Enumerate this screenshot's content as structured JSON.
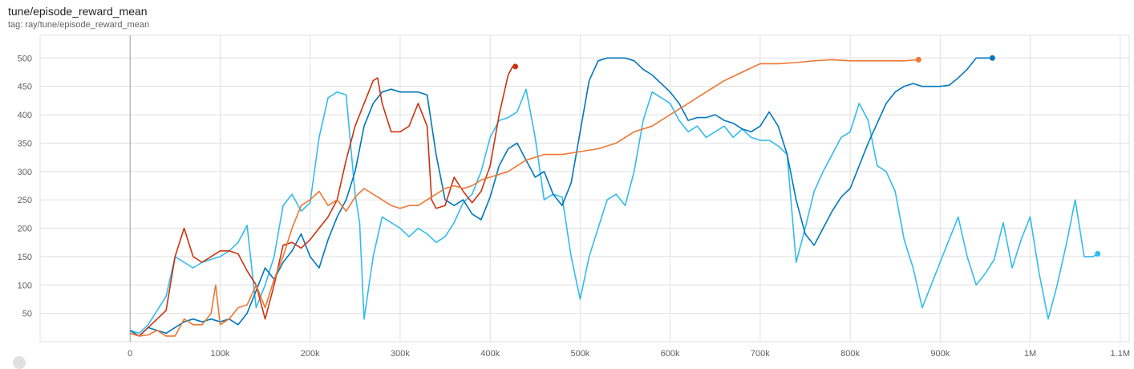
{
  "header": {
    "title": "tune/episode_reward_mean",
    "tag": "tag: ray/tune/episode_reward_mean"
  },
  "chart_data": {
    "type": "line",
    "title": "tune/episode_reward_mean",
    "xlabel": "",
    "ylabel": "",
    "xlim": [
      -100000,
      1110000
    ],
    "ylim": [
      0,
      540
    ],
    "grid": true,
    "x_ticks": [
      0,
      100000,
      200000,
      300000,
      400000,
      500000,
      600000,
      700000,
      800000,
      900000,
      1000000,
      1100000
    ],
    "x_tick_labels": [
      "0",
      "100k",
      "200k",
      "300k",
      "400k",
      "500k",
      "600k",
      "700k",
      "800k",
      "900k",
      "1M",
      "1.1M"
    ],
    "y_ticks": [
      50,
      100,
      150,
      200,
      250,
      300,
      350,
      400,
      450,
      500
    ],
    "y_tick_labels": [
      "50",
      "100",
      "150",
      "200",
      "250",
      "300",
      "350",
      "400",
      "450",
      "500"
    ],
    "series": [
      {
        "color": "#33bbee",
        "x": [
          0,
          10000,
          20000,
          40000,
          50000,
          60000,
          70000,
          80000,
          90000,
          100000,
          110000,
          120000,
          130000,
          140000,
          150000,
          160000,
          170000,
          180000,
          190000,
          200000,
          210000,
          220000,
          230000,
          240000,
          250000,
          255000,
          260000,
          270000,
          280000,
          290000,
          300000,
          310000,
          320000,
          330000,
          340000,
          350000,
          360000,
          370000,
          380000,
          390000,
          400000,
          410000,
          420000,
          430000,
          440000,
          450000,
          460000,
          470000,
          480000,
          490000,
          500000,
          510000,
          520000,
          530000,
          540000,
          550000,
          560000,
          570000,
          580000,
          590000,
          600000,
          610000,
          620000,
          630000,
          640000,
          650000,
          660000,
          670000,
          680000,
          690000,
          700000,
          710000,
          720000,
          730000,
          740000,
          750000,
          760000,
          770000,
          780000,
          790000,
          800000,
          810000,
          820000,
          830000,
          840000,
          850000,
          860000,
          870000,
          880000,
          890000,
          900000,
          910000,
          920000,
          930000,
          940000,
          950000,
          960000,
          970000,
          980000,
          990000,
          1000000,
          1010000,
          1020000,
          1030000,
          1040000,
          1050000,
          1060000,
          1070000,
          1075000
        ],
        "y": [
          20,
          15,
          30,
          80,
          150,
          140,
          130,
          140,
          145,
          150,
          160,
          175,
          205,
          60,
          100,
          150,
          240,
          260,
          230,
          245,
          360,
          430,
          440,
          435,
          260,
          210,
          40,
          150,
          220,
          210,
          200,
          185,
          200,
          190,
          175,
          185,
          210,
          245,
          260,
          300,
          360,
          390,
          395,
          405,
          445,
          360,
          250,
          260,
          255,
          150,
          75,
          150,
          200,
          250,
          260,
          240,
          300,
          390,
          440,
          430,
          420,
          390,
          370,
          380,
          360,
          370,
          380,
          360,
          375,
          360,
          355,
          355,
          345,
          330,
          140,
          200,
          265,
          300,
          330,
          360,
          370,
          420,
          390,
          310,
          300,
          265,
          180,
          130,
          60,
          100,
          140,
          180,
          220,
          150,
          100,
          120,
          145,
          210,
          130,
          180,
          220,
          120,
          40,
          100,
          170,
          250,
          150,
          150,
          155
        ]
      },
      {
        "color": "#0077bb",
        "x": [
          0,
          10000,
          20000,
          30000,
          40000,
          50000,
          60000,
          70000,
          80000,
          90000,
          100000,
          110000,
          120000,
          130000,
          140000,
          150000,
          160000,
          170000,
          180000,
          190000,
          200000,
          210000,
          220000,
          230000,
          240000,
          250000,
          260000,
          270000,
          280000,
          290000,
          300000,
          310000,
          320000,
          330000,
          340000,
          350000,
          360000,
          370000,
          380000,
          390000,
          400000,
          410000,
          420000,
          430000,
          440000,
          450000,
          460000,
          470000,
          480000,
          490000,
          500000,
          510000,
          520000,
          530000,
          540000,
          550000,
          560000,
          570000,
          580000,
          590000,
          600000,
          610000,
          620000,
          630000,
          640000,
          650000,
          660000,
          670000,
          680000,
          690000,
          700000,
          710000,
          720000,
          730000,
          740000,
          750000,
          760000,
          770000,
          780000,
          790000,
          800000,
          810000,
          820000,
          830000,
          840000,
          850000,
          860000,
          870000,
          880000,
          890000,
          900000,
          910000,
          920000,
          930000,
          940000,
          950000,
          958000
        ],
        "y": [
          20,
          10,
          25,
          20,
          15,
          25,
          35,
          40,
          35,
          40,
          35,
          40,
          30,
          50,
          90,
          130,
          110,
          140,
          160,
          190,
          150,
          130,
          180,
          220,
          250,
          300,
          380,
          420,
          440,
          445,
          440,
          440,
          440,
          435,
          330,
          250,
          240,
          250,
          225,
          215,
          255,
          310,
          340,
          350,
          320,
          290,
          300,
          260,
          240,
          280,
          370,
          460,
          495,
          500,
          500,
          500,
          495,
          480,
          470,
          455,
          440,
          420,
          390,
          395,
          395,
          400,
          390,
          385,
          375,
          370,
          380,
          405,
          380,
          330,
          250,
          190,
          170,
          200,
          230,
          255,
          270,
          310,
          350,
          385,
          420,
          440,
          450,
          455,
          450,
          450,
          450,
          452,
          465,
          480,
          500,
          500,
          500
        ]
      },
      {
        "color": "#cc3311",
        "x": [
          0,
          10000,
          20000,
          30000,
          40000,
          50000,
          60000,
          70000,
          80000,
          90000,
          100000,
          110000,
          120000,
          130000,
          140000,
          150000,
          160000,
          170000,
          180000,
          190000,
          200000,
          210000,
          220000,
          230000,
          240000,
          250000,
          260000,
          270000,
          275000,
          280000,
          290000,
          300000,
          310000,
          320000,
          330000,
          335000,
          340000,
          350000,
          360000,
          370000,
          380000,
          390000,
          400000,
          410000,
          420000,
          425000,
          428000
        ],
        "y": [
          15,
          10,
          25,
          40,
          55,
          150,
          200,
          150,
          140,
          150,
          160,
          160,
          155,
          125,
          100,
          40,
          100,
          170,
          175,
          165,
          180,
          200,
          220,
          250,
          320,
          380,
          420,
          460,
          465,
          420,
          370,
          370,
          380,
          420,
          380,
          250,
          235,
          240,
          290,
          265,
          245,
          265,
          310,
          400,
          470,
          485,
          485
        ]
      },
      {
        "color": "#ee7733",
        "x": [
          0,
          10000,
          20000,
          30000,
          40000,
          50000,
          60000,
          70000,
          80000,
          90000,
          95000,
          100000,
          110000,
          120000,
          130000,
          140000,
          150000,
          160000,
          170000,
          180000,
          190000,
          200000,
          210000,
          220000,
          230000,
          240000,
          250000,
          260000,
          270000,
          280000,
          290000,
          300000,
          310000,
          320000,
          330000,
          340000,
          350000,
          360000,
          370000,
          380000,
          390000,
          400000,
          420000,
          440000,
          460000,
          480000,
          500000,
          520000,
          540000,
          560000,
          580000,
          600000,
          620000,
          640000,
          660000,
          680000,
          700000,
          720000,
          740000,
          760000,
          780000,
          800000,
          820000,
          840000,
          860000,
          876000
        ],
        "y": [
          15,
          10,
          12,
          20,
          10,
          10,
          40,
          30,
          30,
          50,
          100,
          30,
          40,
          60,
          65,
          100,
          60,
          110,
          150,
          200,
          240,
          250,
          265,
          240,
          250,
          230,
          255,
          270,
          260,
          250,
          240,
          235,
          240,
          240,
          250,
          260,
          270,
          275,
          270,
          275,
          285,
          290,
          300,
          320,
          330,
          330,
          335,
          340,
          350,
          370,
          380,
          400,
          420,
          440,
          460,
          475,
          490,
          490,
          492,
          495,
          497,
          495,
          495,
          495,
          495,
          497
        ]
      }
    ]
  }
}
